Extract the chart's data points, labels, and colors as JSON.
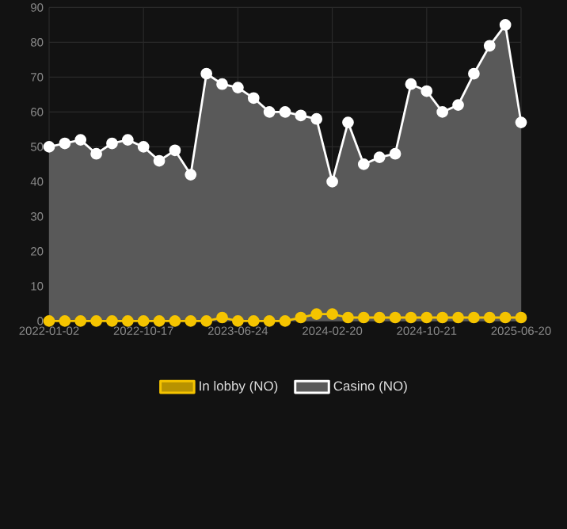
{
  "chart_data": {
    "type": "line",
    "categories": [
      "2022-01-02",
      null,
      null,
      null,
      null,
      null,
      "2022-10-17",
      null,
      null,
      null,
      null,
      null,
      "2023-06-24",
      null,
      null,
      null,
      null,
      null,
      "2024-02-20",
      null,
      null,
      null,
      null,
      null,
      "2024-10-21",
      null,
      null,
      null,
      null,
      null,
      "2025-06-20"
    ],
    "series": [
      {
        "name": "In lobby (NO)",
        "type": "line",
        "color": "#f5c400",
        "values": [
          0,
          0,
          0,
          0,
          0,
          0,
          0,
          0,
          0,
          0,
          0,
          1,
          0,
          0,
          0,
          0,
          1,
          2,
          2,
          1,
          1,
          1,
          1,
          1,
          1,
          1,
          1,
          1,
          1,
          1,
          1
        ]
      },
      {
        "name": "Casino (NO)",
        "type": "area",
        "color": "#ffffff",
        "values": [
          50,
          51,
          52,
          48,
          51,
          52,
          50,
          46,
          49,
          42,
          71,
          68,
          67,
          64,
          60,
          60,
          59,
          58,
          40,
          57,
          45,
          47,
          48,
          68,
          66,
          60,
          62,
          71,
          79,
          85,
          57
        ]
      }
    ],
    "ylim": [
      0,
      90
    ],
    "yticks": [
      0,
      10,
      20,
      30,
      40,
      50,
      60,
      70,
      80,
      90
    ],
    "grid": true,
    "legend": "bottom",
    "marker": "circle",
    "line_style": "solid"
  }
}
